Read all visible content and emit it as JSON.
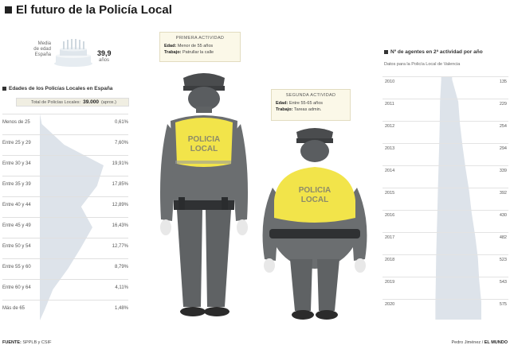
{
  "title": "El futuro de la Policía Local",
  "media_edad": {
    "label_lines": [
      "Media",
      "de edad",
      "España"
    ],
    "value": "39,9",
    "unit": "años"
  },
  "left_section": {
    "title": "Edades de los Policías Locales en España",
    "total_label": "Total de Policías Locales:",
    "total_value": "39.000",
    "total_suffix": "(aprox.)",
    "rows": [
      {
        "label": "Menos de 25",
        "pct": "0,61%"
      },
      {
        "label": "Entre 25 y 29",
        "pct": "7,60%"
      },
      {
        "label": "Entre 30 y 34",
        "pct": "19,91%"
      },
      {
        "label": "Entre 35 y 39",
        "pct": "17,85%"
      },
      {
        "label": "Entre 40 y 44",
        "pct": "12,89%"
      },
      {
        "label": "Entre 45 y 49",
        "pct": "16,43%"
      },
      {
        "label": "Entre 50 y 54",
        "pct": "12,77%"
      },
      {
        "label": "Entre 55 y 60",
        "pct": "8,79%"
      },
      {
        "label": "Entre 60 y 64",
        "pct": "4,11%"
      },
      {
        "label": "Más de 65",
        "pct": "1,48%"
      }
    ]
  },
  "primera": {
    "heading": "PRIMERA ACTIVIDAD",
    "edad_label": "Edad:",
    "edad_value": "Menor de 55 años",
    "trabajo_label": "Trabajo:",
    "trabajo_value": "Patrullar la calle"
  },
  "segunda": {
    "heading": "SEGUNDA ACTIVIDAD",
    "edad_label": "Edad:",
    "edad_value": "Entre 55-65 años",
    "trabajo_label": "Trabajo:",
    "trabajo_value": "Tareas admin."
  },
  "vest_text": [
    "POLICIA",
    "LOCAL"
  ],
  "right_section": {
    "title": "Nº de agentes en 2ª actividad por año",
    "subtitle": "Datos para la Policía Local de Valencia",
    "rows": [
      {
        "year": "2010",
        "value": "135"
      },
      {
        "year": "2011",
        "value": "229"
      },
      {
        "year": "2012",
        "value": "254"
      },
      {
        "year": "2013",
        "value": "294"
      },
      {
        "year": "2014",
        "value": "339"
      },
      {
        "year": "2015",
        "value": "392"
      },
      {
        "year": "2016",
        "value": "430"
      },
      {
        "year": "2017",
        "value": "482"
      },
      {
        "year": "2018",
        "value": "523"
      },
      {
        "year": "2019",
        "value": "543"
      },
      {
        "year": "2020",
        "value": "575"
      }
    ]
  },
  "footer": {
    "source_label": "FUENTE:",
    "source_value": "SPPLB y CSIF",
    "credit_label": "Pedro Jiménez /",
    "credit_value": "EL MUNDO"
  },
  "colors": {
    "vest": "#f2e44a",
    "uniform": "#6b6e70",
    "uniform_dark": "#4a4c4e",
    "silhouette": "#dde3ea"
  }
}
